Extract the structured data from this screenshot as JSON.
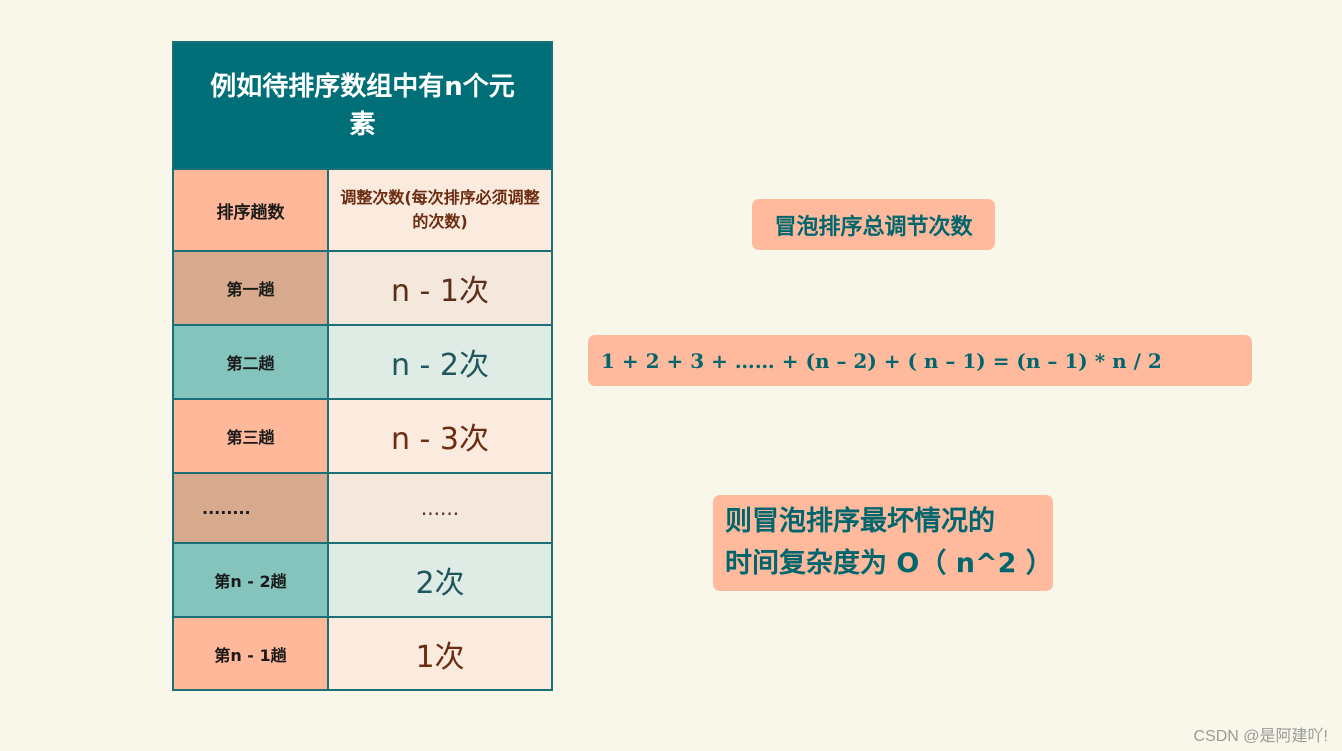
{
  "table": {
    "title": "例如待排序数组中有n个元素",
    "header": {
      "col1": "排序趟数",
      "col2": "调整次数(每次排序必须调整的次数)"
    },
    "rows": [
      {
        "pass": "第一趟",
        "count": "n - 1次"
      },
      {
        "pass": "第二趟",
        "count": "n - 2次"
      },
      {
        "pass": "第三趟",
        "count": "n - 3次"
      },
      {
        "pass": "........",
        "count": "......"
      },
      {
        "pass": "第n - 2趟",
        "count": "2次"
      },
      {
        "pass": "第n - 1趟",
        "count": "1次"
      }
    ]
  },
  "summary": {
    "title": "冒泡排序总调节次数",
    "formula": "1 + 2 + 3 + …… + (n – 2) + ( n – 1) = (n – 1) * n / 2",
    "conclusion_line1": "则冒泡排序最坏情况的",
    "conclusion_line2": "时间复杂度为 O（ n^2 ）"
  },
  "watermark": "CSDN @是阿建吖!",
  "colors": {
    "teal_dark": "#006f77",
    "salmon": "#ffb899",
    "tan": "#d7aa8d",
    "teal_light": "#85c4bd",
    "background": "#f8f7ea"
  }
}
